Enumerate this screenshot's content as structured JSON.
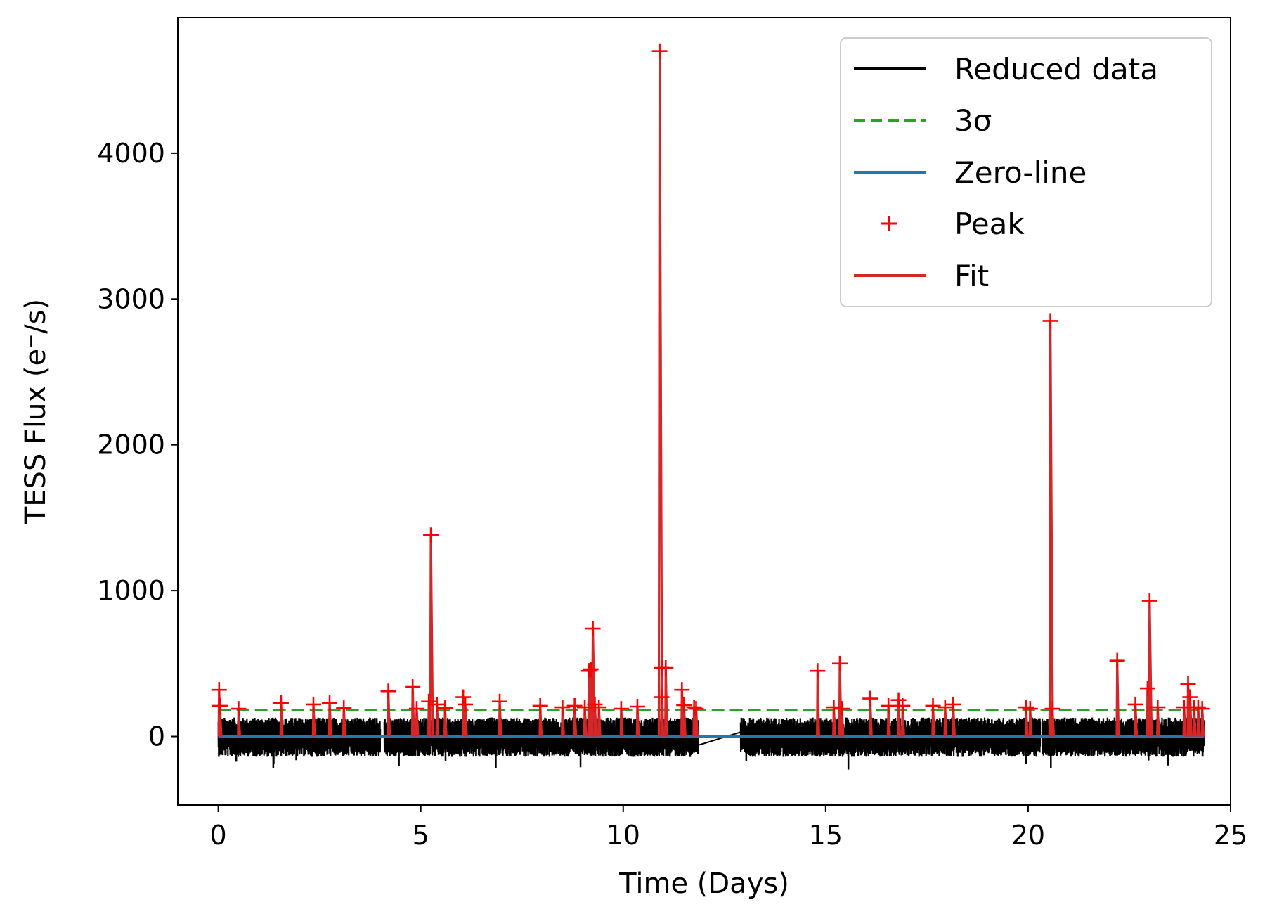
{
  "chart_data": {
    "type": "line",
    "xlabel": "Time (Days)",
    "ylabel": "TESS Flux (e⁻/s)",
    "xlim": [
      -1,
      25
    ],
    "ylim": [
      -470,
      4930
    ],
    "x_ticks": [
      0,
      5,
      10,
      15,
      20,
      25
    ],
    "y_ticks": [
      0,
      1000,
      2000,
      3000,
      4000
    ],
    "grid": false,
    "legend_position": "top-right",
    "threshold_3sigma": 180,
    "zero_line": 0,
    "data_gaps": [
      [
        4.0,
        4.1
      ],
      [
        11.85,
        12.9
      ]
    ],
    "data_segments": [
      [
        0,
        4.0
      ],
      [
        4.1,
        11.85
      ],
      [
        12.9,
        20.3
      ],
      [
        20.35,
        24.35
      ]
    ],
    "reduced_data_noise": {
      "typical_low": -140,
      "typical_high": 130
    },
    "series": [
      {
        "name": "Reduced data",
        "kind": "line",
        "color": "#000000"
      },
      {
        "name": "3σ",
        "kind": "dashed-line",
        "color": "#2ca02c"
      },
      {
        "name": "Zero-line",
        "kind": "line",
        "color": "#1f77b4"
      },
      {
        "name": "Peak",
        "kind": "marker",
        "color": "#ff0000"
      },
      {
        "name": "Fit",
        "kind": "line",
        "color": "#d62728"
      }
    ],
    "peaks": [
      {
        "x": 0.02,
        "y": 320
      },
      {
        "x": 0.04,
        "y": 210
      },
      {
        "x": 0.5,
        "y": 190
      },
      {
        "x": 1.55,
        "y": 230
      },
      {
        "x": 2.35,
        "y": 220
      },
      {
        "x": 2.75,
        "y": 230
      },
      {
        "x": 3.1,
        "y": 195
      },
      {
        "x": 4.2,
        "y": 310
      },
      {
        "x": 4.8,
        "y": 340
      },
      {
        "x": 4.9,
        "y": 190
      },
      {
        "x": 5.2,
        "y": 240
      },
      {
        "x": 5.25,
        "y": 1380
      },
      {
        "x": 5.4,
        "y": 220
      },
      {
        "x": 5.6,
        "y": 195
      },
      {
        "x": 6.05,
        "y": 270
      },
      {
        "x": 6.1,
        "y": 220
      },
      {
        "x": 6.95,
        "y": 240
      },
      {
        "x": 7.95,
        "y": 210
      },
      {
        "x": 8.5,
        "y": 200
      },
      {
        "x": 8.8,
        "y": 210
      },
      {
        "x": 9.05,
        "y": 200
      },
      {
        "x": 9.15,
        "y": 450
      },
      {
        "x": 9.2,
        "y": 460
      },
      {
        "x": 9.25,
        "y": 740
      },
      {
        "x": 9.3,
        "y": 220
      },
      {
        "x": 9.4,
        "y": 200
      },
      {
        "x": 9.95,
        "y": 190
      },
      {
        "x": 10.35,
        "y": 205
      },
      {
        "x": 10.9,
        "y": 4700
      },
      {
        "x": 10.95,
        "y": 470
      },
      {
        "x": 11.05,
        "y": 470
      },
      {
        "x": 10.95,
        "y": 270
      },
      {
        "x": 11.45,
        "y": 320
      },
      {
        "x": 11.5,
        "y": 215
      },
      {
        "x": 11.75,
        "y": 200
      },
      {
        "x": 11.8,
        "y": 190
      },
      {
        "x": 14.8,
        "y": 450
      },
      {
        "x": 15.2,
        "y": 200
      },
      {
        "x": 15.35,
        "y": 500
      },
      {
        "x": 15.4,
        "y": 190
      },
      {
        "x": 16.1,
        "y": 260
      },
      {
        "x": 16.55,
        "y": 210
      },
      {
        "x": 16.8,
        "y": 250
      },
      {
        "x": 16.9,
        "y": 210
      },
      {
        "x": 17.65,
        "y": 210
      },
      {
        "x": 17.95,
        "y": 200
      },
      {
        "x": 18.15,
        "y": 220
      },
      {
        "x": 19.95,
        "y": 200
      },
      {
        "x": 20.05,
        "y": 190
      },
      {
        "x": 20.55,
        "y": 2850
      },
      {
        "x": 20.6,
        "y": 190
      },
      {
        "x": 22.2,
        "y": 520
      },
      {
        "x": 22.65,
        "y": 220
      },
      {
        "x": 22.95,
        "y": 330
      },
      {
        "x": 23.0,
        "y": 930
      },
      {
        "x": 23.2,
        "y": 200
      },
      {
        "x": 23.85,
        "y": 200
      },
      {
        "x": 23.95,
        "y": 360
      },
      {
        "x": 24.0,
        "y": 270
      },
      {
        "x": 24.1,
        "y": 200
      },
      {
        "x": 24.2,
        "y": 200
      },
      {
        "x": 24.3,
        "y": 190
      }
    ]
  },
  "legend": {
    "items": [
      {
        "label": "Reduced data"
      },
      {
        "label": "3σ"
      },
      {
        "label": "Zero-line"
      },
      {
        "label": "Peak"
      },
      {
        "label": "Fit"
      }
    ]
  }
}
